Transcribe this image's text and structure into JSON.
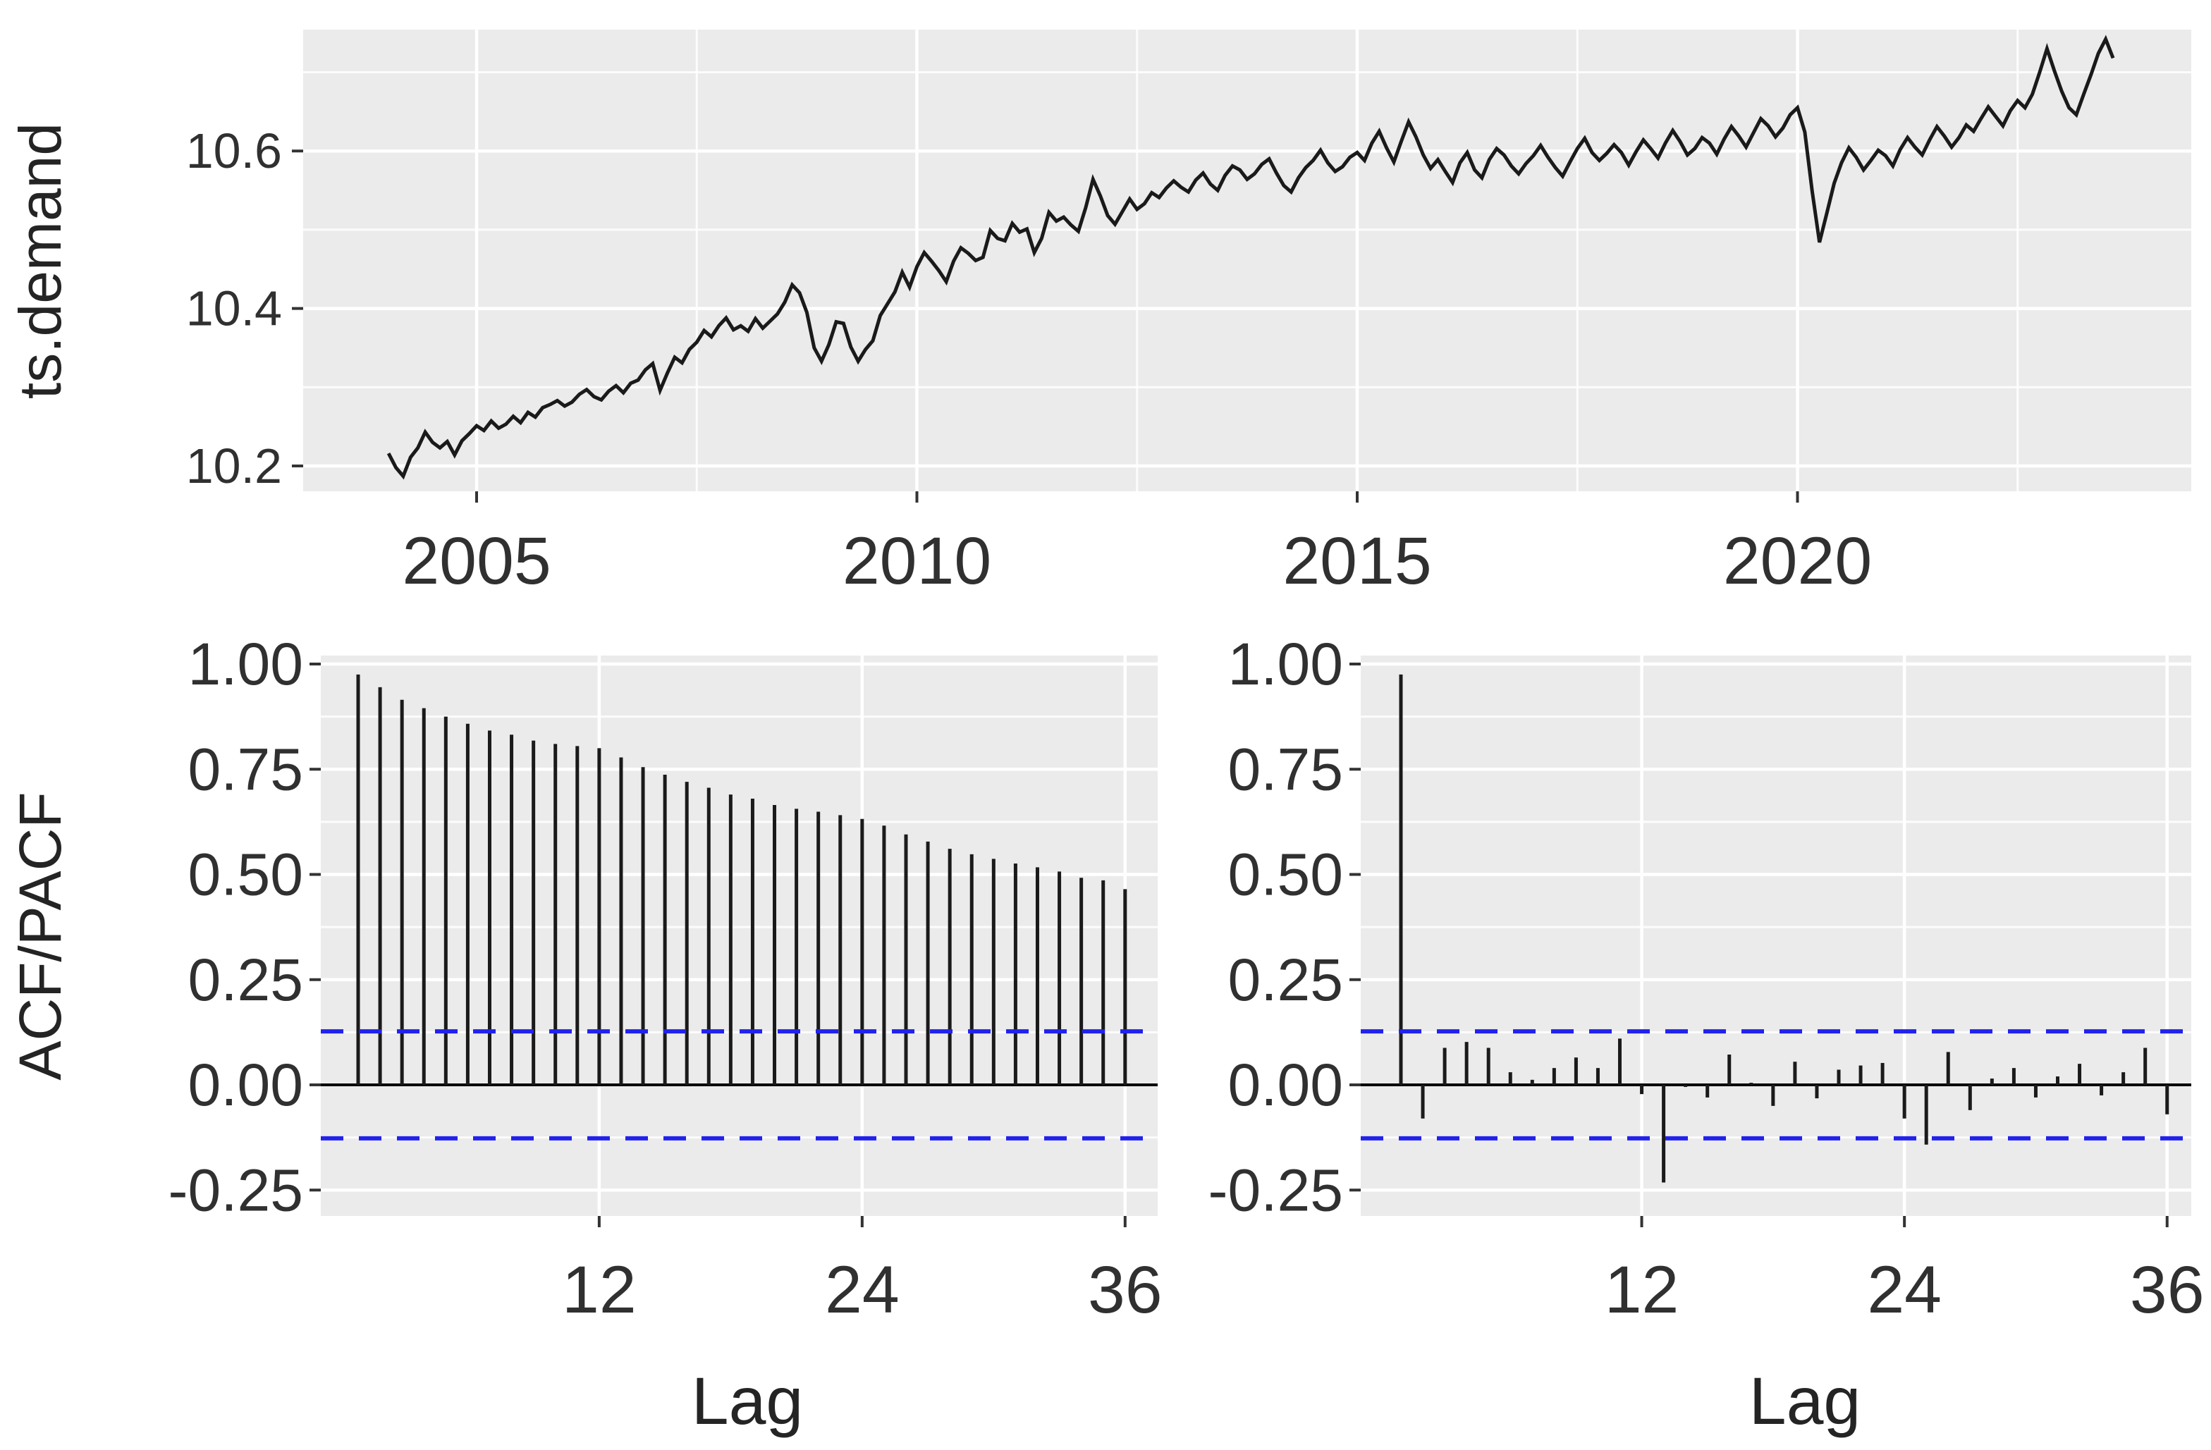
{
  "figure": {
    "kind": "time-series display (series + ACF + PACF)",
    "background": "#FFFFFF",
    "panel_background": "#EBEBEB",
    "grid_color": "#FFFFFF",
    "series_color": "#1A1A1A",
    "conf_line_color": "#2222EE",
    "tick_mark_color": "#333333",
    "text_color": "#242424"
  },
  "top_panel": {
    "y_label": "ts.demand",
    "y_ticks": [
      {
        "v": 10.2,
        "label": "10.2"
      },
      {
        "v": 10.4,
        "label": "10.4"
      },
      {
        "v": 10.6,
        "label": "10.6"
      }
    ],
    "y_minor": [
      10.3,
      10.5,
      10.7
    ],
    "x_ticks": [
      {
        "v": 2005,
        "label": "2005"
      },
      {
        "v": 2010,
        "label": "2010"
      },
      {
        "v": 2015,
        "label": "2015"
      },
      {
        "v": 2020,
        "label": "2020"
      }
    ],
    "x_minor": [
      2007.5,
      2012.5,
      2017.5,
      2022.5
    ]
  },
  "bottom_panels": {
    "y_label": "ACF/PACF",
    "x_label_left": "Lag",
    "x_label_right": "Lag",
    "y_ticks": [
      {
        "v": 1.0,
        "label": "1.00"
      },
      {
        "v": 0.75,
        "label": "0.75"
      },
      {
        "v": 0.5,
        "label": "0.50"
      },
      {
        "v": 0.25,
        "label": "0.25"
      },
      {
        "v": 0.0,
        "label": "0.00"
      },
      {
        "v": -0.25,
        "label": "-0.25"
      }
    ],
    "y_minor": [
      0.875,
      0.625,
      0.375,
      0.125,
      -0.125
    ],
    "x_ticks": [
      {
        "v": 12,
        "label": "12"
      },
      {
        "v": 24,
        "label": "24"
      },
      {
        "v": 36,
        "label": "36"
      }
    ]
  },
  "chart_data": [
    {
      "id": "ts-demand",
      "type": "line",
      "title": "",
      "ylabel": "ts.demand",
      "x_start": 2004.0,
      "x_step_years": 0.0833333,
      "xlim": [
        2003.0,
        2024.5
      ],
      "ylim": [
        10.166,
        10.752
      ],
      "grid": true,
      "values": [
        10.216,
        10.198,
        10.187,
        10.211,
        10.223,
        10.243,
        10.23,
        10.223,
        10.231,
        10.214,
        10.232,
        10.241,
        10.251,
        10.245,
        10.257,
        10.248,
        10.253,
        10.263,
        10.255,
        10.268,
        10.262,
        10.274,
        10.278,
        10.283,
        10.276,
        10.281,
        10.291,
        10.297,
        10.288,
        10.284,
        10.295,
        10.302,
        10.293,
        10.305,
        10.309,
        10.322,
        10.33,
        10.296,
        10.318,
        10.338,
        10.331,
        10.348,
        10.357,
        10.372,
        10.364,
        10.378,
        10.388,
        10.373,
        10.378,
        10.371,
        10.387,
        10.375,
        10.384,
        10.393,
        10.408,
        10.43,
        10.42,
        10.395,
        10.35,
        10.333,
        10.354,
        10.383,
        10.381,
        10.351,
        10.333,
        10.348,
        10.359,
        10.391,
        10.406,
        10.421,
        10.446,
        10.427,
        10.453,
        10.471,
        10.46,
        10.448,
        10.434,
        10.46,
        10.477,
        10.47,
        10.461,
        10.465,
        10.499,
        10.489,
        10.486,
        10.508,
        10.497,
        10.501,
        10.471,
        10.489,
        10.522,
        10.511,
        10.516,
        10.506,
        10.498,
        10.528,
        10.564,
        10.543,
        10.518,
        10.507,
        10.523,
        10.539,
        10.526,
        10.533,
        10.547,
        10.541,
        10.553,
        10.562,
        10.554,
        10.548,
        10.563,
        10.572,
        10.558,
        10.55,
        10.569,
        10.581,
        10.576,
        10.564,
        10.571,
        10.583,
        10.59,
        10.572,
        10.556,
        10.548,
        10.566,
        10.579,
        10.588,
        10.601,
        10.585,
        10.574,
        10.58,
        10.592,
        10.598,
        10.588,
        10.61,
        10.625,
        10.604,
        10.586,
        10.612,
        10.637,
        10.618,
        10.595,
        10.578,
        10.589,
        10.574,
        10.56,
        10.585,
        10.598,
        10.576,
        10.566,
        10.589,
        10.603,
        10.595,
        10.581,
        10.571,
        10.584,
        10.594,
        10.607,
        10.592,
        10.579,
        10.568,
        10.586,
        10.603,
        10.616,
        10.598,
        10.588,
        10.597,
        10.608,
        10.598,
        10.582,
        10.599,
        10.614,
        10.603,
        10.591,
        10.61,
        10.626,
        10.612,
        10.595,
        10.603,
        10.617,
        10.61,
        10.596,
        10.615,
        10.631,
        10.619,
        10.605,
        10.623,
        10.641,
        10.632,
        10.618,
        10.629,
        10.646,
        10.655,
        10.624,
        10.549,
        10.484,
        10.521,
        10.559,
        10.585,
        10.604,
        10.592,
        10.576,
        10.588,
        10.601,
        10.594,
        10.581,
        10.602,
        10.617,
        10.605,
        10.595,
        10.614,
        10.631,
        10.619,
        10.605,
        10.617,
        10.633,
        10.625,
        10.641,
        10.656,
        10.644,
        10.632,
        10.651,
        10.664,
        10.655,
        10.672,
        10.7,
        10.73,
        10.702,
        10.676,
        10.655,
        10.646,
        10.672,
        10.697,
        10.724,
        10.742,
        10.718
      ]
    },
    {
      "id": "acf",
      "type": "bar",
      "title": "",
      "xlabel": "Lag",
      "ylabel": "ACF/PACF",
      "lags_start": 1,
      "xlim": [
        -0.7,
        37.5
      ],
      "ylim": [
        -0.31,
        1.02
      ],
      "conf_level": 0.127,
      "grid": true,
      "values": [
        0.975,
        0.945,
        0.915,
        0.895,
        0.875,
        0.858,
        0.842,
        0.832,
        0.818,
        0.81,
        0.805,
        0.8,
        0.778,
        0.755,
        0.737,
        0.72,
        0.706,
        0.69,
        0.68,
        0.665,
        0.656,
        0.649,
        0.641,
        0.632,
        0.616,
        0.595,
        0.578,
        0.561,
        0.548,
        0.537,
        0.526,
        0.517,
        0.507,
        0.492,
        0.486,
        0.465
      ]
    },
    {
      "id": "pacf",
      "type": "bar",
      "title": "",
      "xlabel": "Lag",
      "ylabel": "ACF/PACF",
      "lags_start": 1,
      "xlim": [
        -0.85,
        37.4
      ],
      "ylim": [
        -0.31,
        1.02
      ],
      "conf_level": 0.127,
      "grid": true,
      "values": [
        0.975,
        -0.08,
        0.088,
        0.102,
        0.088,
        0.03,
        0.012,
        0.04,
        0.065,
        0.04,
        0.11,
        -0.022,
        -0.232,
        -0.005,
        -0.03,
        0.072,
        0.005,
        -0.05,
        0.055,
        -0.032,
        0.036,
        0.046,
        0.052,
        -0.08,
        -0.142,
        0.078,
        -0.06,
        0.015,
        0.04,
        -0.03,
        0.02,
        0.05,
        -0.025,
        0.03,
        0.088,
        -0.07
      ]
    }
  ]
}
